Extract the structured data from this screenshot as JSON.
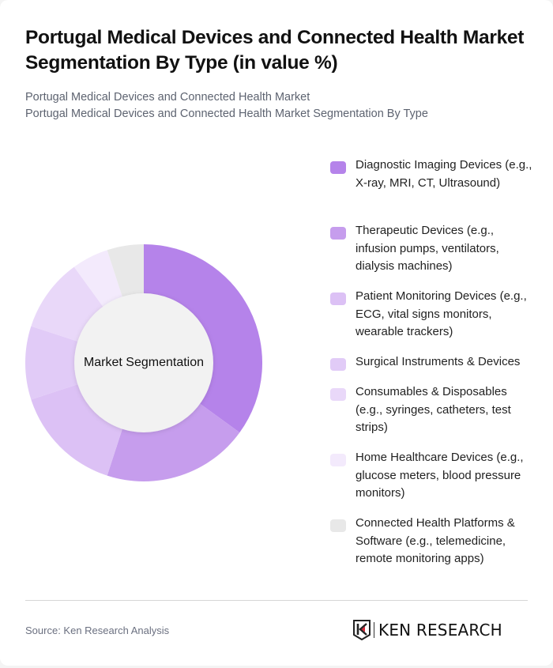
{
  "header": {
    "title": "Portugal Medical Devices and Connected Health Market Segmentation By Type (in value %)",
    "subtitle_line1": "Portugal Medical Devices and Connected Health Market",
    "subtitle_line2": "Portugal Medical Devices and Connected Health Market Segmentation By Type"
  },
  "chart": {
    "center_label": "Market Segmentation"
  },
  "legend": [
    {
      "label": "Diagnostic Imaging Devices (e.g., X-ray, MRI, CT, Ultrasound)",
      "color": "#b583ea"
    },
    {
      "label": "Therapeutic Devices (e.g., infusion pumps, ventilators, dialysis machines)",
      "color": "#c69ded"
    },
    {
      "label": "Patient Monitoring Devices (e.g., ECG, vital signs monitors, wearable trackers)",
      "color": "#dcc1f5"
    },
    {
      "label": "Surgical Instruments & Devices",
      "color": "#e1cbf7"
    },
    {
      "label": "Consumables & Disposables (e.g., syringes, catheters, test strips)",
      "color": "#e9d8f9"
    },
    {
      "label": "Home Healthcare Devices (e.g., glucose meters, blood pressure monitors)",
      "color": "#f3eafc"
    },
    {
      "label": "Connected Health Platforms & Software (e.g., telemedicine, remote monitoring apps)",
      "color": "#e8e8e8"
    }
  ],
  "footer": {
    "source": "Source: Ken Research Analysis",
    "logo_text": "KEN RESEARCH"
  },
  "chart_data": {
    "type": "pie",
    "variant": "donut",
    "title": "Portugal Medical Devices and Connected Health Market Segmentation By Type (in value %)",
    "center_label": "Market Segmentation",
    "categories": [
      "Diagnostic Imaging Devices (e.g., X-ray, MRI, CT, Ultrasound)",
      "Therapeutic Devices (e.g., infusion pumps, ventilators, dialysis machines)",
      "Patient Monitoring Devices (e.g., ECG, vital signs monitors, wearable trackers)",
      "Surgical Instruments & Devices",
      "Consumables & Disposables (e.g., syringes, catheters, test strips)",
      "Home Healthcare Devices (e.g., glucose meters, blood pressure monitors)",
      "Connected Health Platforms & Software (e.g., telemedicine, remote monitoring apps)"
    ],
    "values": [
      35,
      20,
      15,
      10,
      10,
      5,
      5
    ],
    "colors": [
      "#b583ea",
      "#c69ded",
      "#dcc1f5",
      "#e1cbf7",
      "#e9d8f9",
      "#f3eafc",
      "#e8e8e8"
    ],
    "unit": "%",
    "legend_position": "right",
    "start_angle": "top, clockwise"
  }
}
